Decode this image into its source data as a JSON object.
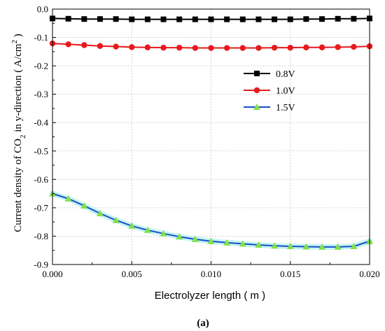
{
  "chart_data": {
    "type": "line",
    "xlabel": "Electrolyzer length ( m )",
    "ylabel": {
      "pre": "Current density of CO",
      "sub": "2",
      "mid": " in y-direction ( A/cm",
      "sup": "2",
      "post": " )"
    },
    "xlim": [
      0.0,
      0.02
    ],
    "ylim": [
      -0.9,
      0.0
    ],
    "xticks": [
      "0.000",
      "0.005",
      "0.010",
      "0.015",
      "0.020"
    ],
    "yticks": [
      "0.0",
      "-0.1",
      "-0.2",
      "-0.3",
      "-0.4",
      "-0.5",
      "-0.6",
      "-0.7",
      "-0.8",
      "-0.9"
    ],
    "grid": true,
    "legend_position": "top-right",
    "caption": "(a)",
    "x": [
      0.0,
      0.001,
      0.002,
      0.003,
      0.004,
      0.005,
      0.006,
      0.007,
      0.008,
      0.009,
      0.01,
      0.011,
      0.012,
      0.013,
      0.014,
      0.015,
      0.016,
      0.017,
      0.018,
      0.019,
      0.02
    ],
    "series": [
      {
        "name": "0.8V",
        "color": "#000000",
        "marker": "square",
        "values": [
          -0.033,
          -0.034,
          -0.035,
          -0.035,
          -0.035,
          -0.036,
          -0.036,
          -0.036,
          -0.036,
          -0.036,
          -0.036,
          -0.036,
          -0.036,
          -0.036,
          -0.036,
          -0.036,
          -0.035,
          -0.035,
          -0.034,
          -0.034,
          -0.033
        ]
      },
      {
        "name": "1.0V",
        "color": "#e8191c",
        "marker": "circle",
        "values": [
          -0.121,
          -0.124,
          -0.127,
          -0.13,
          -0.132,
          -0.134,
          -0.135,
          -0.136,
          -0.136,
          -0.137,
          -0.137,
          -0.137,
          -0.137,
          -0.137,
          -0.136,
          -0.136,
          -0.135,
          -0.135,
          -0.134,
          -0.133,
          -0.131
        ]
      },
      {
        "name": "1.5V",
        "color": "#1a4ec9",
        "marker": "triangle",
        "marker_color": "#80e04a",
        "values": [
          -0.65,
          -0.668,
          -0.693,
          -0.72,
          -0.744,
          -0.764,
          -0.779,
          -0.791,
          -0.802,
          -0.811,
          -0.818,
          -0.823,
          -0.827,
          -0.831,
          -0.834,
          -0.836,
          -0.837,
          -0.838,
          -0.838,
          -0.836,
          -0.818
        ]
      }
    ]
  }
}
